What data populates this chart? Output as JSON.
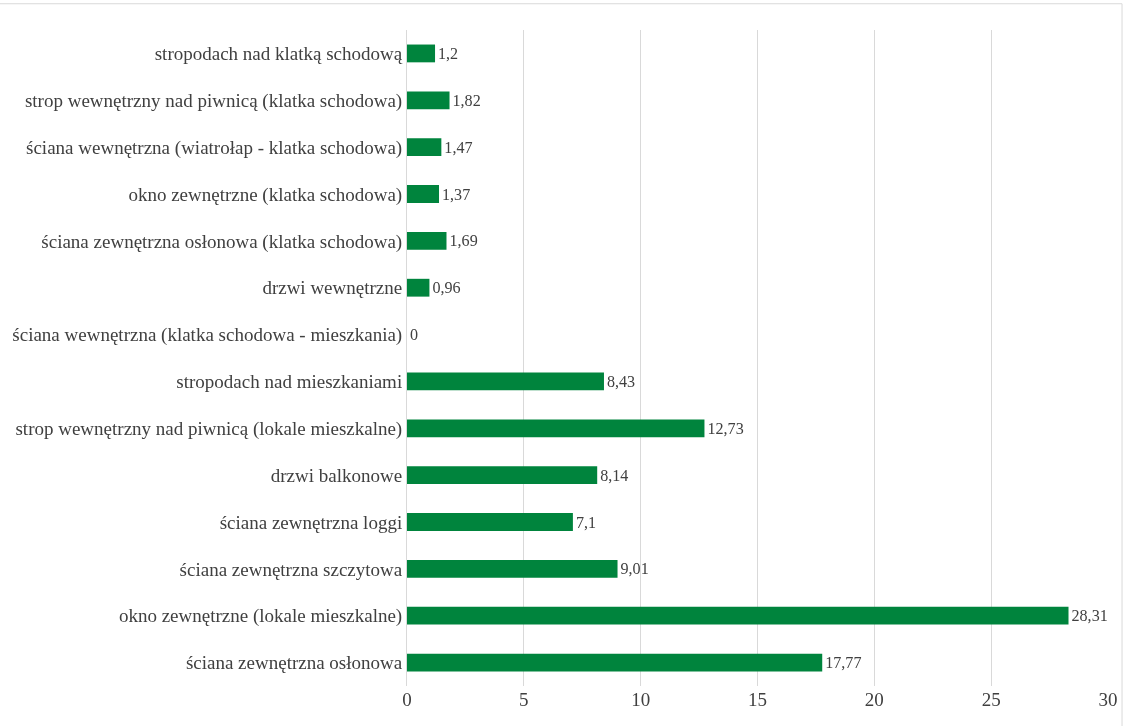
{
  "chart_data": {
    "type": "bar",
    "orientation": "horizontal",
    "categories": [
      "stropodach nad klatką schodową",
      "strop wewnętrzny nad piwnicą (klatka schodowa)",
      "ściana wewnętrzna (wiatrołap - klatka schodowa)",
      "okno zewnętrzne (klatka schodowa)",
      "ściana zewnętrzna osłonowa (klatka schodowa)",
      "drzwi wewnętrzne",
      "ściana wewnętrzna (klatka schodowa - mieszkania)",
      "stropodach nad mieszkaniami",
      "strop wewnętrzny nad piwnicą (lokale mieszkalne)",
      "drzwi balkonowe",
      "ściana zewnętrzna loggi",
      "ściana zewnętrzna szczytowa",
      "okno zewnętrzne (lokale mieszkalne)",
      "ściana zewnętrzna osłonowa"
    ],
    "values": [
      1.2,
      1.82,
      1.47,
      1.37,
      1.69,
      0.96,
      0,
      8.43,
      12.73,
      8.14,
      7.1,
      9.01,
      28.31,
      17.77
    ],
    "value_labels": [
      "1,2",
      "1,82",
      "1,47",
      "1,37",
      "1,69",
      "0,96",
      "0",
      "8,43",
      "12,73",
      "8,14",
      "7,1",
      "9,01",
      "28,31",
      "17,77"
    ],
    "color": "#00843d",
    "xlim": [
      0,
      30
    ],
    "xticks": [
      0,
      5,
      10,
      15,
      20,
      25,
      30
    ],
    "grid": "x",
    "legend": false
  }
}
